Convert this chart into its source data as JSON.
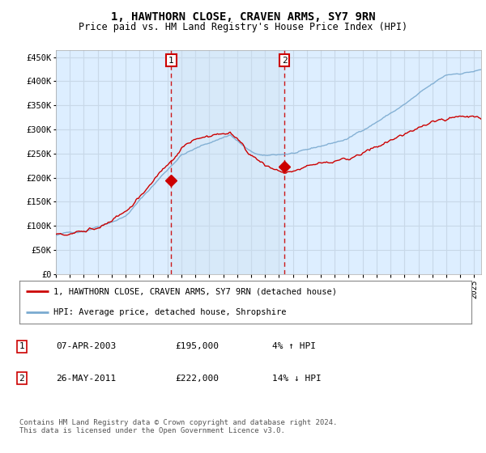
{
  "title": "1, HAWTHORN CLOSE, CRAVEN ARMS, SY7 9RN",
  "subtitle": "Price paid vs. HM Land Registry's House Price Index (HPI)",
  "ylabel_ticks": [
    "£0",
    "£50K",
    "£100K",
    "£150K",
    "£200K",
    "£250K",
    "£300K",
    "£350K",
    "£400K",
    "£450K"
  ],
  "ylim": [
    0,
    470000
  ],
  "xlim_start": 1995.0,
  "xlim_end": 2025.5,
  "background_color": "#ffffff",
  "plot_bg_color": "#ddeeff",
  "grid_color": "#c8d8e8",
  "hpi_color": "#7aaad0",
  "price_color": "#cc0000",
  "shade_color": "#cce0f0",
  "sale1_x": 2003.27,
  "sale1_y": 195000,
  "sale1_label": "1",
  "sale2_x": 2011.4,
  "sale2_y": 222000,
  "sale2_label": "2",
  "legend_line1": "1, HAWTHORN CLOSE, CRAVEN ARMS, SY7 9RN (detached house)",
  "legend_line2": "HPI: Average price, detached house, Shropshire",
  "table_row1_num": "1",
  "table_row1_date": "07-APR-2003",
  "table_row1_price": "£195,000",
  "table_row1_hpi": "4% ↑ HPI",
  "table_row2_num": "2",
  "table_row2_date": "26-MAY-2011",
  "table_row2_price": "£222,000",
  "table_row2_hpi": "14% ↓ HPI",
  "footnote": "Contains HM Land Registry data © Crown copyright and database right 2024.\nThis data is licensed under the Open Government Licence v3.0.",
  "xticks": [
    1995,
    1996,
    1997,
    1998,
    1999,
    2000,
    2001,
    2002,
    2003,
    2004,
    2005,
    2006,
    2007,
    2008,
    2009,
    2010,
    2011,
    2012,
    2013,
    2014,
    2015,
    2016,
    2017,
    2018,
    2019,
    2020,
    2021,
    2022,
    2023,
    2024,
    2025
  ]
}
